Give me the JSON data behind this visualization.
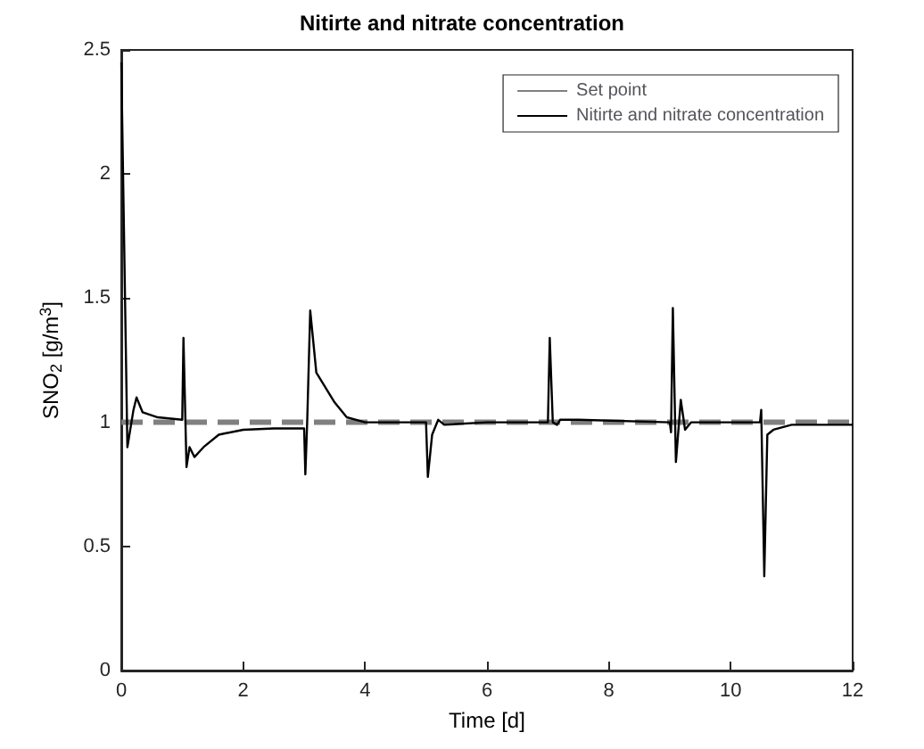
{
  "chart_data": {
    "type": "line",
    "title": "Nitirte and nitrate concentration",
    "xlabel": "Time [d]",
    "ylabel": "SNO$_{2}$ [g/m$^{3}$]",
    "xlim": [
      0,
      12
    ],
    "xticks": [
      0,
      2,
      4,
      6,
      8,
      10,
      12
    ],
    "ylim": [
      0,
      2.5
    ],
    "yticks": [
      0,
      0.5,
      1,
      1.5,
      2,
      2.5
    ],
    "grid": false,
    "legend": "top right",
    "marker": "none",
    "series": [
      {
        "name": "Set point",
        "color": "#808080",
        "line_style": "dashed",
        "x": [
          0,
          12
        ],
        "values": [
          1,
          1
        ]
      },
      {
        "name": "Nitirte and nitrate concentration",
        "color": "#000000",
        "line_style": "solid",
        "x": [
          0,
          0.1,
          0.2,
          0.25,
          0.35,
          0.6,
          1.0,
          1.02,
          1.07,
          1.12,
          1.2,
          1.35,
          1.6,
          2.0,
          2.5,
          3.0,
          3.02,
          3.05,
          3.1,
          3.2,
          3.35,
          3.5,
          3.7,
          4.0,
          5.0,
          5.03,
          5.1,
          5.2,
          5.3,
          6.0,
          7.0,
          7.03,
          7.08,
          7.15,
          7.2,
          7.5,
          9.0,
          9.02,
          9.05,
          9.1,
          9.18,
          9.25,
          9.35,
          10.48,
          10.5,
          10.55,
          10.6,
          10.7,
          11.0,
          12
        ],
        "values": [
          2.45,
          0.9,
          1.05,
          1.1,
          1.04,
          1.02,
          1.01,
          1.34,
          0.82,
          0.9,
          0.86,
          0.9,
          0.95,
          0.97,
          0.975,
          0.975,
          0.79,
          1.0,
          1.45,
          1.2,
          1.14,
          1.08,
          1.02,
          1.0,
          1.0,
          0.78,
          0.95,
          1.01,
          0.99,
          1.0,
          1.0,
          1.34,
          1.0,
          0.99,
          1.01,
          1.01,
          1.0,
          0.96,
          1.46,
          0.84,
          1.09,
          0.97,
          1.0,
          1.0,
          1.05,
          0.38,
          0.95,
          0.97,
          0.99,
          0.99
        ]
      }
    ]
  }
}
